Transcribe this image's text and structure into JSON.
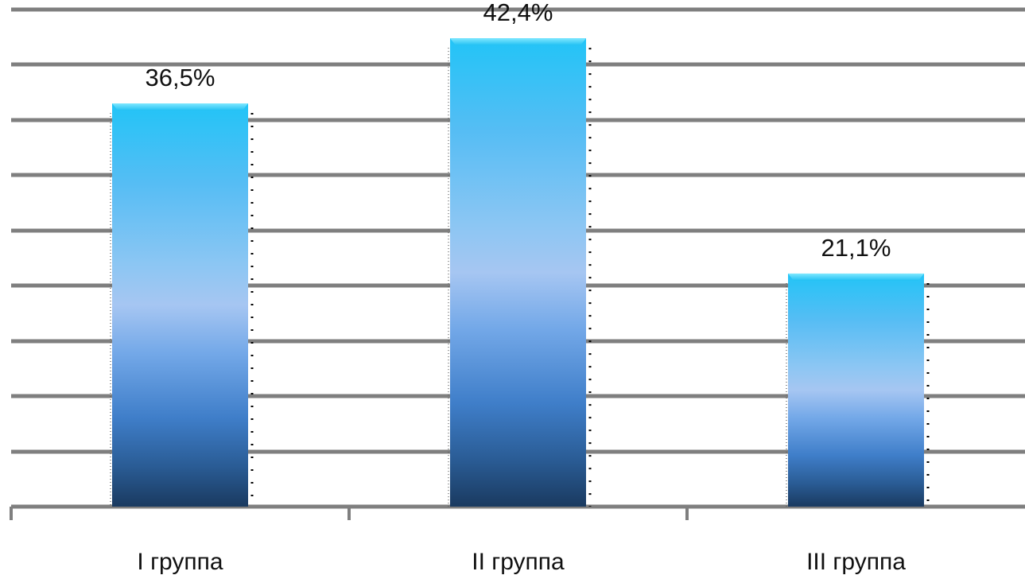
{
  "chart_data": {
    "type": "bar",
    "categories": [
      "I группа",
      "II группа",
      "III группа"
    ],
    "values": [
      36.5,
      42.4,
      21.1
    ],
    "data_labels": [
      "36,5%",
      "42,4%",
      "21,1%"
    ],
    "title": "",
    "xlabel": "",
    "ylabel": "",
    "ylim": [
      0,
      45
    ],
    "grid": true,
    "legend": "none",
    "colors": {
      "bar_top": "#2ec8f5",
      "bar_mid": "#9cc4f0",
      "bar_bottom": "#1c3f66",
      "grid": "#7f7f7f",
      "text": "#111111"
    }
  }
}
